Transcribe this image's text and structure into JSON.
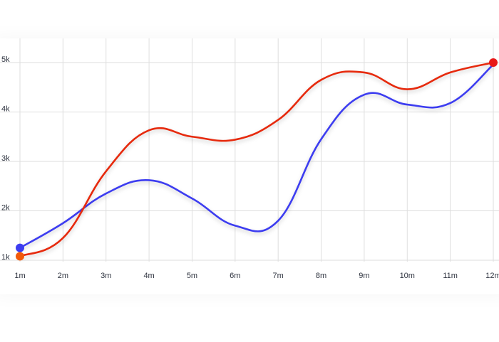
{
  "chart_data": {
    "type": "line",
    "categories": [
      "1m",
      "2m",
      "3m",
      "4m",
      "5m",
      "6m",
      "7m",
      "8m",
      "9m",
      "10m",
      "11m",
      "12m"
    ],
    "series": [
      {
        "x": [
          1,
          2,
          3,
          4,
          5,
          6,
          7,
          8,
          9,
          10,
          11,
          12
        ],
        "values": [
          1250,
          1750,
          2350,
          2620,
          2250,
          1700,
          1800,
          3450,
          4350,
          4150,
          4180,
          4960
        ],
        "color": "#3d3df0",
        "marker": "start"
      },
      {
        "x": [
          1,
          2,
          3,
          4,
          5,
          6,
          7,
          8,
          9,
          10,
          11,
          12
        ],
        "values": [
          1080,
          1450,
          2800,
          3630,
          3500,
          3440,
          3840,
          4650,
          4800,
          4460,
          4800,
          5000
        ],
        "color": "#e62a10",
        "start_marker_color": "#f25a0a",
        "end_marker_color": "#e81818",
        "marker": "both"
      }
    ],
    "y_ticks": [
      "1k",
      "2k",
      "3k",
      "4k",
      "5k"
    ],
    "ylim": [
      1000,
      5400
    ],
    "xlim": [
      1,
      12
    ],
    "grid": true,
    "legend": "none"
  }
}
